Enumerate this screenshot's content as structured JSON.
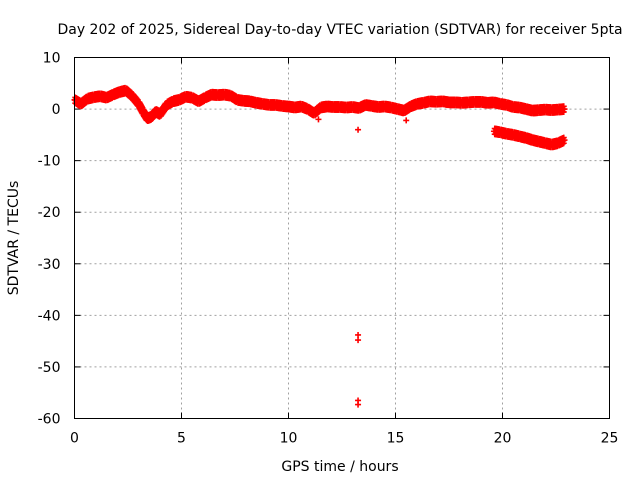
{
  "chart_data": {
    "type": "scatter",
    "title": "Day 202 of 2025, Sidereal Day-to-day VTEC variation (SDTVAR) for receiver 5pta",
    "xlabel": "GPS time / hours",
    "ylabel": "SDTVAR / TECUs",
    "xlim": [
      0,
      25
    ],
    "ylim": [
      -60,
      10
    ],
    "xticks": [
      0,
      5,
      10,
      15,
      20,
      25
    ],
    "yticks": [
      10,
      0,
      -10,
      -20,
      -30,
      -40,
      -50,
      -60
    ],
    "xtick_labels": [
      "0",
      "5",
      "10",
      "15",
      "20",
      "25"
    ],
    "ytick_labels": [
      "10",
      "0",
      "-10",
      "-20",
      "-30",
      "-40",
      "-50",
      "-60"
    ],
    "grid": true,
    "marker": "+",
    "color": "#ff0000",
    "series": [
      {
        "name": "SDTVAR",
        "x": [
          0.0,
          0.3,
          0.6,
          0.9,
          1.2,
          1.5,
          1.8,
          2.1,
          2.4,
          2.7,
          3.0,
          3.2,
          3.4,
          3.6,
          3.8,
          4.0,
          4.3,
          4.6,
          4.9,
          5.2,
          5.5,
          5.8,
          6.1,
          6.4,
          6.7,
          7.0,
          7.3,
          7.6,
          7.9,
          8.2,
          8.5,
          8.8,
          9.1,
          9.4,
          9.7,
          10.0,
          10.3,
          10.6,
          10.9,
          11.2,
          11.5,
          11.8,
          12.1,
          12.4,
          12.7,
          13.0,
          13.3,
          13.6,
          13.9,
          14.2,
          14.5,
          14.8,
          15.1,
          15.4,
          15.7,
          16.0,
          16.3,
          16.6,
          16.9,
          17.2,
          17.5,
          17.8,
          18.1,
          18.4,
          18.7,
          19.0,
          19.3,
          19.6,
          19.9,
          20.2,
          20.5,
          20.8,
          21.1,
          21.4,
          21.7,
          22.0,
          22.3,
          22.6,
          22.9,
          19.6,
          19.9,
          20.2,
          20.5,
          20.8,
          21.1,
          21.4,
          21.7,
          22.0,
          22.3,
          22.6,
          22.9,
          13.25,
          13.25,
          13.25,
          13.25,
          13.25,
          15.5,
          11.4
        ],
        "y": [
          1.8,
          1.0,
          2.0,
          2.3,
          2.5,
          2.2,
          2.8,
          3.3,
          3.6,
          2.5,
          1.0,
          -0.5,
          -1.8,
          -1.5,
          -0.5,
          -1.0,
          0.8,
          1.5,
          1.8,
          2.4,
          2.2,
          1.5,
          2.2,
          2.8,
          2.7,
          2.8,
          2.6,
          1.8,
          1.6,
          1.5,
          1.2,
          1.0,
          0.8,
          0.8,
          0.6,
          0.5,
          0.3,
          0.5,
          0.0,
          -0.8,
          0.3,
          0.5,
          0.4,
          0.4,
          0.3,
          0.4,
          0.2,
          0.8,
          0.6,
          0.4,
          0.5,
          0.3,
          0.0,
          -0.3,
          0.5,
          1.0,
          1.2,
          1.5,
          1.4,
          1.5,
          1.3,
          1.3,
          1.2,
          1.3,
          1.4,
          1.4,
          1.2,
          1.3,
          1.0,
          0.8,
          0.4,
          0.3,
          0.0,
          -0.3,
          -0.2,
          -0.1,
          -0.2,
          -0.1,
          0.0,
          -4.3,
          -4.5,
          -4.8,
          -5.0,
          -5.3,
          -5.6,
          -6.0,
          -6.3,
          -6.6,
          -6.9,
          -6.6,
          -6.0,
          -4.0,
          -43.8,
          -44.8,
          -56.5,
          -57.3,
          -2.2,
          -2.0
        ]
      }
    ]
  }
}
